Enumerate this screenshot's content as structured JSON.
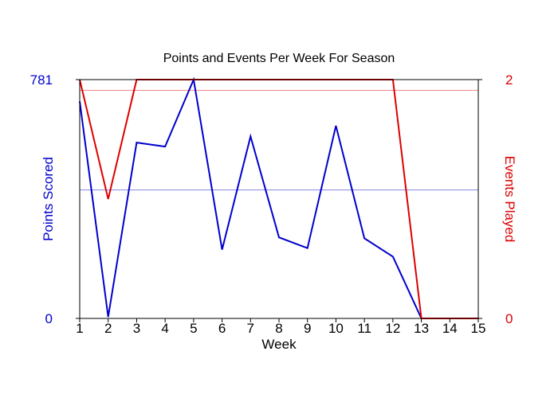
{
  "chart_data": {
    "type": "line",
    "title": "Points and Events Per Week For Season",
    "xlabel": "Week",
    "ylabel_left": "Points Scored",
    "ylabel_right": "Events Played",
    "x": [
      1,
      2,
      3,
      4,
      5,
      6,
      7,
      8,
      9,
      10,
      11,
      12,
      13,
      14,
      15
    ],
    "xlim": [
      1,
      15
    ],
    "ylim_left": [
      0,
      781
    ],
    "ylim_right": [
      0,
      2
    ],
    "yticks_left": [
      "0",
      "781"
    ],
    "yticks_right": [
      "0",
      "2"
    ],
    "series": [
      {
        "name": "Points Scored",
        "axis": "left",
        "color": "#0000cc",
        "values": [
          710,
          5,
          575,
          562,
          781,
          225,
          595,
          265,
          230,
          630,
          262,
          202,
          0,
          0,
          0
        ]
      },
      {
        "name": "Events Played",
        "axis": "right",
        "color": "#dd0000",
        "values": [
          2,
          1,
          2,
          2,
          2,
          2,
          2,
          2,
          2,
          2,
          2,
          2,
          0,
          0,
          0
        ]
      }
    ],
    "reference_lines": [
      {
        "axis": "left",
        "value": 420,
        "color": "#8888dd"
      },
      {
        "axis": "right",
        "value": 1.91,
        "color": "#ee8888"
      }
    ],
    "grid": false
  }
}
